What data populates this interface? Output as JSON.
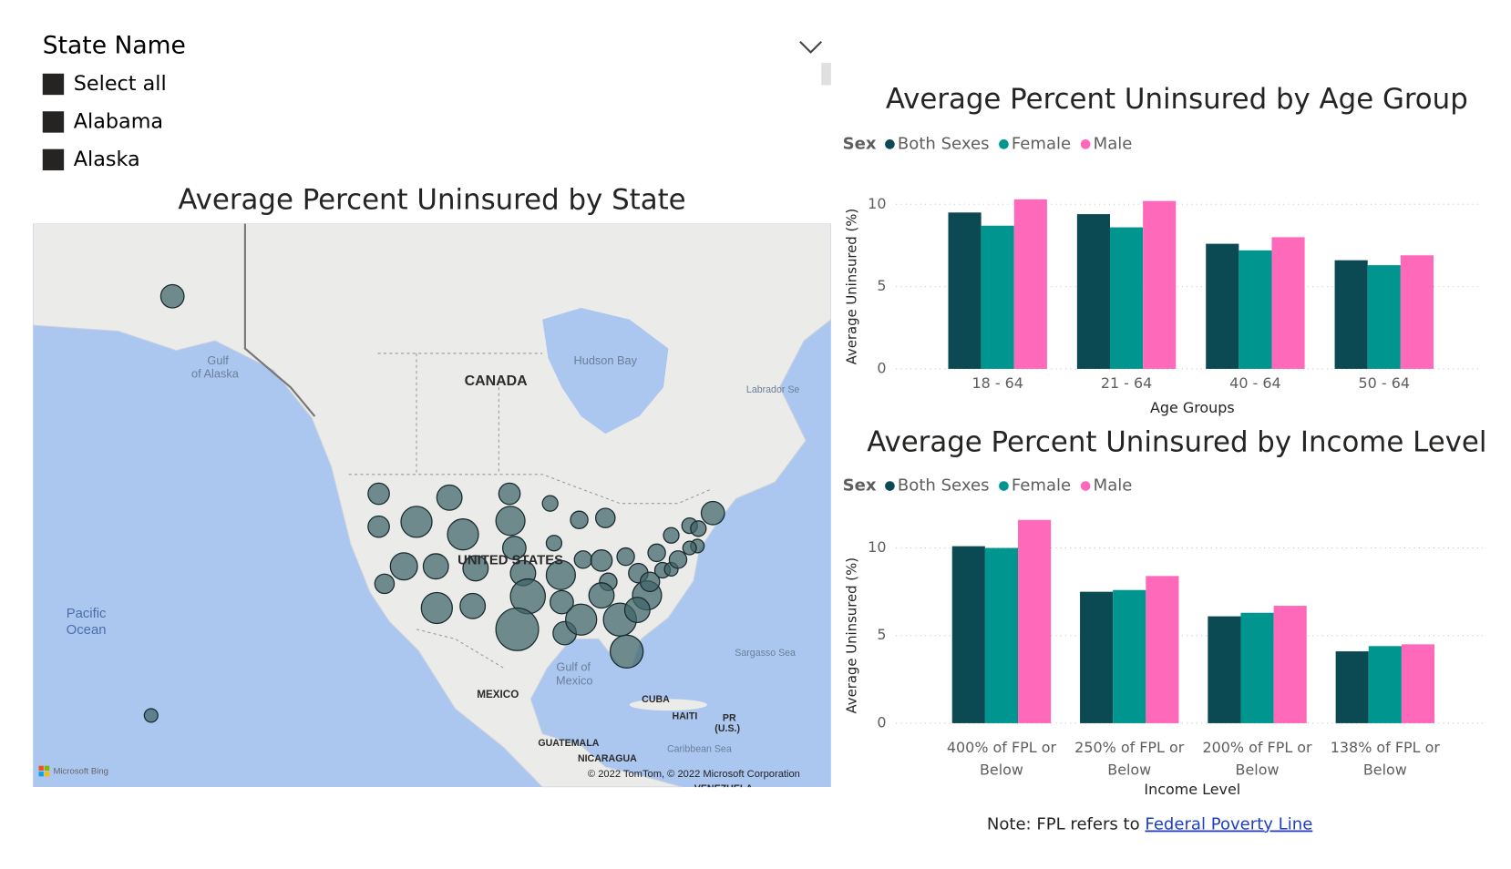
{
  "slicer": {
    "title": "State Name",
    "items": [
      "Select all",
      "Alabama",
      "Alaska"
    ]
  },
  "map": {
    "title": "Average Percent Uninsured by State",
    "labels": [
      "Gulf",
      "of Alaska",
      "CANADA",
      "Hudson Bay",
      "Labrador Se",
      "UNITED STATES",
      "Pacific",
      "Ocean",
      "Gulf of",
      "Mexico",
      "Sargasso Sea",
      "MEXICO",
      "CUBA",
      "HAITI",
      "PR",
      "(U.S.)",
      "GUATEMALA",
      "NICARAGUA",
      "Caribbean Sea",
      "VENEZUELA"
    ],
    "logo": "Microsoft Bing",
    "attribution": "© 2022 TomTom, © 2022 Microsoft Corporation"
  },
  "chart_data": [
    {
      "type": "bar",
      "title": "Average Percent Uninsured by Age Group",
      "legend_title": "Sex",
      "categories": [
        "18 - 64",
        "21 - 64",
        "40 - 64",
        "50 - 64"
      ],
      "series": [
        {
          "name": "Both Sexes",
          "color": "#0b4a53",
          "values": [
            9.5,
            9.4,
            7.6,
            6.6
          ]
        },
        {
          "name": "Female",
          "color": "#00968f",
          "values": [
            8.7,
            8.6,
            7.2,
            6.3
          ]
        },
        {
          "name": "Male",
          "color": "#ff69b9",
          "values": [
            10.3,
            10.2,
            8.0,
            6.9
          ]
        }
      ],
      "ylim": [
        0,
        10.5
      ],
      "yticks": [
        0,
        5,
        10
      ],
      "y_label": "Average Uninsured (%)",
      "x_label": "Age Groups",
      "grid": true
    },
    {
      "type": "bar",
      "title": "Average Percent Uninsured by Income Level",
      "legend_title": "Sex",
      "categories": [
        "400% of FPL or Below",
        "250% of FPL or Below",
        "200% of FPL or Below",
        "138% of FPL or Below"
      ],
      "series": [
        {
          "name": "Both Sexes",
          "color": "#0b4a53",
          "values": [
            10.1,
            7.5,
            6.1,
            4.1
          ]
        },
        {
          "name": "Female",
          "color": "#00968f",
          "values": [
            10.0,
            7.6,
            6.3,
            4.4
          ]
        },
        {
          "name": "Male",
          "color": "#ff69b9",
          "values": [
            11.6,
            8.4,
            6.7,
            4.5
          ]
        }
      ],
      "ylim": [
        0,
        12
      ],
      "yticks": [
        0,
        5,
        10
      ],
      "y_label": "Average Uninsured (%)",
      "x_label": "Income Level",
      "grid": true
    }
  ],
  "note": {
    "text": "Note: FPL refers to ",
    "link": "Federal Poverty Line"
  }
}
